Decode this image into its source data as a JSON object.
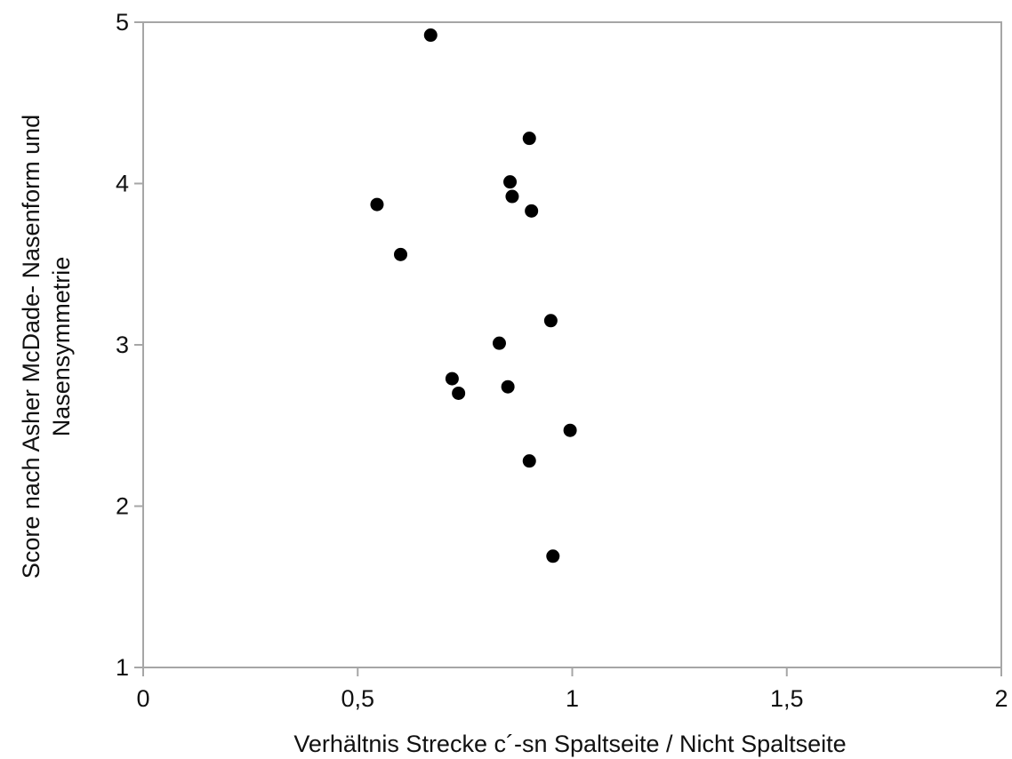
{
  "chart_data": {
    "type": "scatter",
    "title": "",
    "xlabel": "Verhältnis Strecke c´-sn Spaltseite / Nicht Spaltseite",
    "ylabel_lines": [
      "Score nach Asher McDade- Nasenform und",
      "Nasensymmetrie"
    ],
    "xlim": [
      0,
      2
    ],
    "ylim": [
      1,
      5
    ],
    "x_ticks": [
      0,
      0.5,
      1,
      1.5,
      2
    ],
    "x_tick_labels": [
      "0",
      "0,5",
      "1",
      "1,5",
      "2"
    ],
    "y_ticks": [
      1,
      2,
      3,
      4,
      5
    ],
    "y_tick_labels": [
      "1",
      "2",
      "3",
      "4",
      "5"
    ],
    "grid": false,
    "legend": "none",
    "colors": {
      "point": "#000000",
      "axis": "#a6a6a6",
      "text": "#111111"
    },
    "series": [
      {
        "points": [
          {
            "x": 0.67,
            "y": 4.92
          },
          {
            "x": 0.9,
            "y": 4.28
          },
          {
            "x": 0.855,
            "y": 4.01
          },
          {
            "x": 0.86,
            "y": 3.92
          },
          {
            "x": 0.905,
            "y": 3.83
          },
          {
            "x": 0.545,
            "y": 3.87
          },
          {
            "x": 0.6,
            "y": 3.56
          },
          {
            "x": 0.95,
            "y": 3.15
          },
          {
            "x": 0.83,
            "y": 3.01
          },
          {
            "x": 0.72,
            "y": 2.79
          },
          {
            "x": 0.735,
            "y": 2.7
          },
          {
            "x": 0.85,
            "y": 2.74
          },
          {
            "x": 0.995,
            "y": 2.47
          },
          {
            "x": 0.9,
            "y": 2.28
          },
          {
            "x": 0.955,
            "y": 1.69
          }
        ]
      }
    ]
  }
}
